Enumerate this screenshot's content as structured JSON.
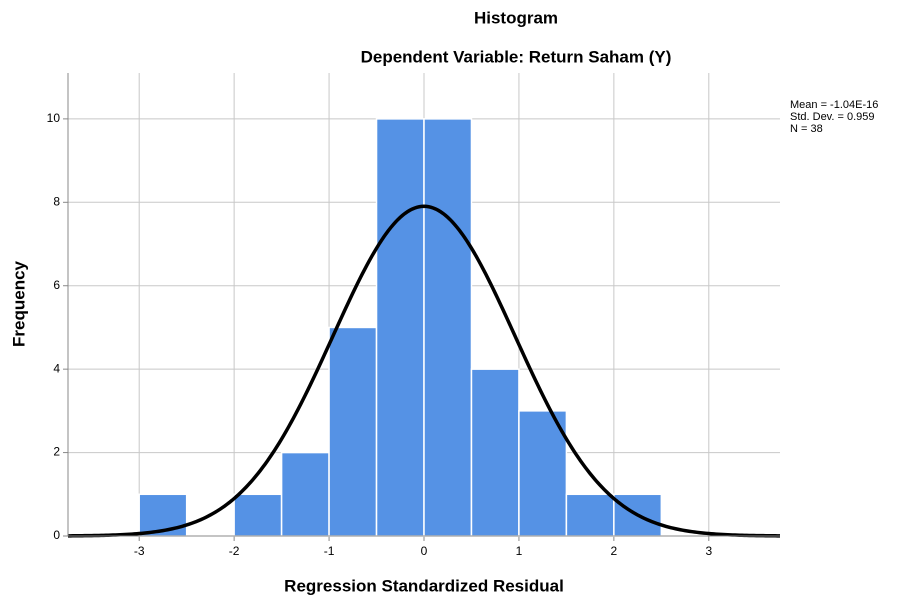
{
  "chart_data": {
    "type": "histogram",
    "title": "Histogram",
    "subtitle": "Dependent Variable: Return Saham (Y)",
    "x_label": "Regression Standardized Residual",
    "y_label": "Frequency",
    "bins": [
      -3,
      -2.5,
      -2,
      -1.5,
      -1,
      -0.5,
      0,
      0.5,
      1,
      1.5,
      2,
      2.5
    ],
    "counts": [
      1,
      0,
      1,
      2,
      5,
      10,
      10,
      4,
      3,
      1,
      1
    ],
    "color": "#5592e5",
    "curve_color": "#000000",
    "xlim": [
      -3.75,
      3.75
    ],
    "ylim": [
      0,
      11.1
    ],
    "xticks": [
      -3,
      -2,
      -1,
      0,
      1,
      2,
      3
    ],
    "yticks": [
      0,
      2,
      4,
      6,
      8,
      10
    ],
    "grid": true,
    "stats": [
      {
        "value": -1.04e-16,
        "label": "Mean = -1.04E-16"
      },
      {
        "value": 0.959,
        "label": "Std. Dev. = 0.959"
      },
      {
        "value": 38,
        "label": "N = 38"
      }
    ]
  }
}
